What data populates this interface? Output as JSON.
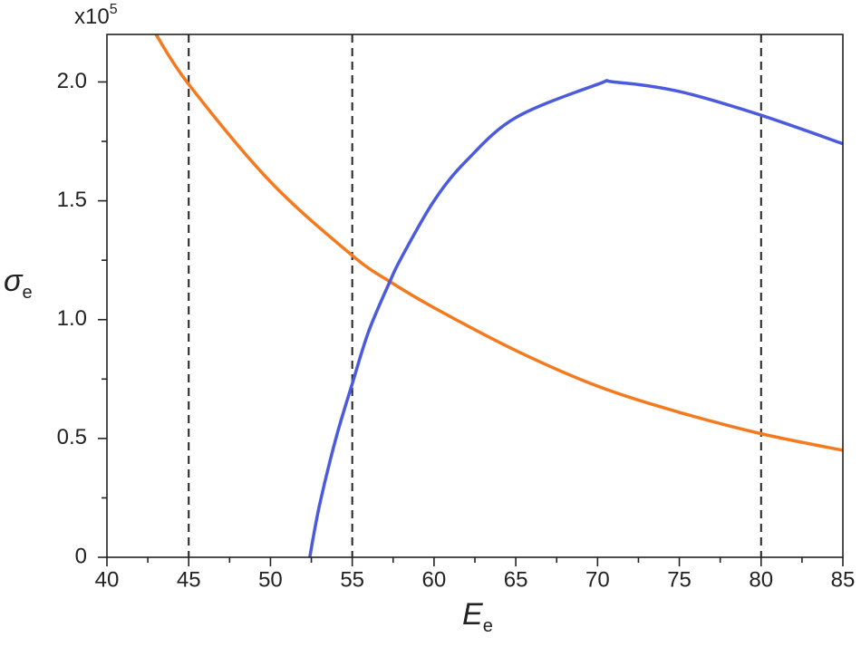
{
  "chart_data": {
    "type": "line",
    "x_label": {
      "symbol": "E",
      "subscript": "e"
    },
    "y_label": {
      "symbol": "σ",
      "subscript": "e"
    },
    "y_scale_label": {
      "base": "x10",
      "exponent": "5"
    },
    "xlim": [
      40,
      85
    ],
    "xticks": [
      40,
      45,
      50,
      55,
      60,
      65,
      70,
      75,
      80,
      85
    ],
    "xminorticks": [
      42.5,
      47.5,
      52.5,
      57.5,
      62.5,
      67.5,
      72.5,
      77.5,
      82.5
    ],
    "ylim": [
      0,
      2.2
    ],
    "yticks": [
      0,
      {
        "value": 0.5,
        "label": "0.5"
      },
      {
        "value": 1,
        "label": "1.0"
      },
      {
        "value": 1.5,
        "label": "1.5"
      },
      {
        "value": 2,
        "label": "2.0"
      }
    ],
    "yminorticks": [
      0.25,
      0.75,
      1.25,
      1.75
    ],
    "vlines": [
      45,
      55,
      80
    ],
    "vline_color": "#222",
    "series": [
      {
        "color": "#f47a20",
        "x": [
          43,
          45,
          50,
          55,
          57.3,
          60,
          65,
          70,
          75,
          80,
          85
        ],
        "values": [
          2.2,
          1.99,
          1.58,
          1.27,
          1.16,
          1.05,
          0.87,
          0.72,
          0.61,
          0.52,
          0.45
        ]
      },
      {
        "color": "#4b5bdc",
        "x": [
          52.4,
          53,
          54,
          55,
          56,
          57.3,
          58,
          60,
          62,
          65,
          70,
          71,
          75,
          80,
          85
        ],
        "values": [
          0,
          0.22,
          0.5,
          0.73,
          0.95,
          1.16,
          1.26,
          1.5,
          1.67,
          1.85,
          1.99,
          2.0,
          1.96,
          1.86,
          1.74
        ]
      }
    ]
  }
}
